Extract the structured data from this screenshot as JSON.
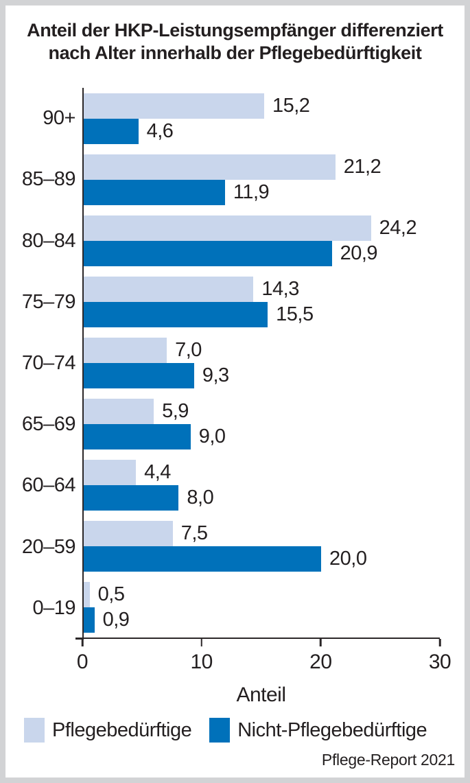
{
  "title": {
    "line1": "Anteil der HKP-Leistungsempfänger differenziert",
    "line2": "nach Alter innerhalb der Pflegebedürftigkeit"
  },
  "chart_data": {
    "type": "bar",
    "orientation": "horizontal",
    "categories": [
      "90+",
      "85–89",
      "80–84",
      "75–79",
      "70–74",
      "65–69",
      "60–64",
      "20–59",
      "0–19"
    ],
    "series": [
      {
        "name": "Pflegebedürftige",
        "color": "#c9d6ec",
        "values": [
          15.2,
          21.2,
          24.2,
          14.3,
          7.0,
          5.9,
          4.4,
          7.5,
          0.5
        ],
        "value_labels": [
          "15,2",
          "21,2",
          "24,2",
          "14,3",
          "7,0",
          "5,9",
          "4,4",
          "7,5",
          "0,5"
        ]
      },
      {
        "name": "Nicht-Pflegebedürftige",
        "color": "#0071ba",
        "values": [
          4.6,
          11.9,
          20.9,
          15.5,
          9.3,
          9.0,
          8.0,
          20.0,
          0.9
        ],
        "value_labels": [
          "4,6",
          "11,9",
          "20,9",
          "15,5",
          "9,3",
          "9,0",
          "8,0",
          "20,0",
          "0,9"
        ]
      }
    ],
    "xlabel": "Anteil",
    "xlim": [
      0,
      30
    ],
    "xticks": [
      0,
      10,
      20,
      30
    ],
    "xtick_labels": [
      "0",
      "10",
      "20",
      "30"
    ],
    "legend_position": "bottom",
    "grid": false
  },
  "source": "Pflege-Report 2021",
  "colors": {
    "pflegebeduerftige": "#c9d6ec",
    "nicht_pflegebeduerftige": "#0071ba",
    "text": "#231f20",
    "axis": "#2b2728",
    "frame_background": "#d2d3d5",
    "panel_background": "#ffffff"
  }
}
